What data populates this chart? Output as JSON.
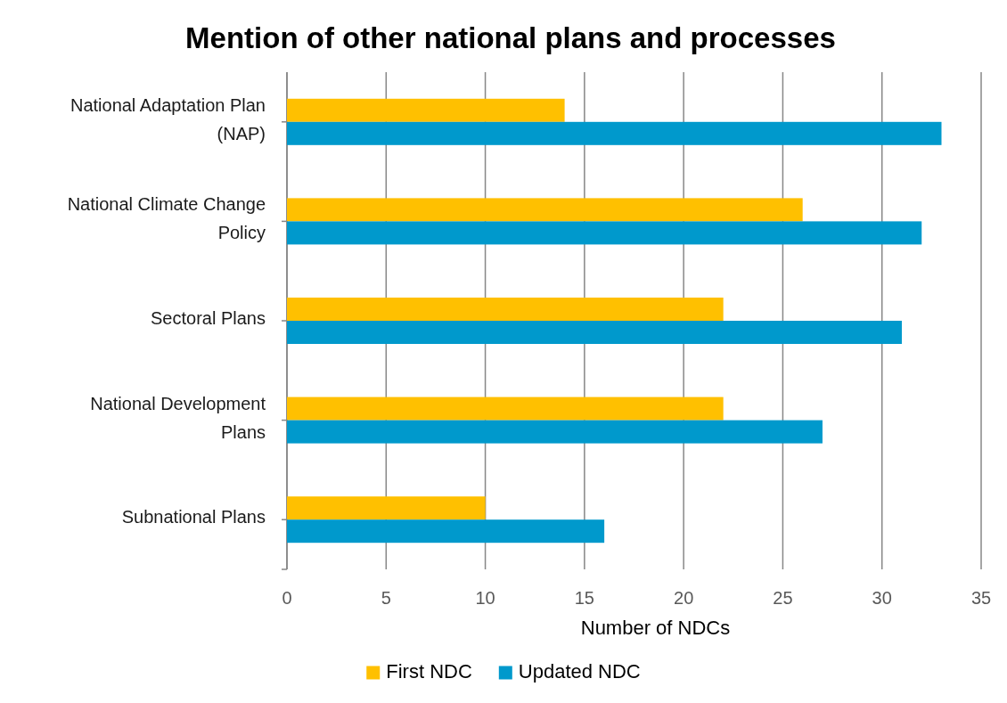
{
  "chart_data": {
    "type": "bar",
    "orientation": "horizontal",
    "title": "Mention of other national plans and processes",
    "xlabel": "Number of NDCs",
    "categories": [
      "National Adaptation Plan (NAP)",
      "National Climate Change Policy",
      "Sectoral Plans",
      "National Development Plans",
      "Subnational Plans"
    ],
    "series": [
      {
        "name": "First NDC",
        "color": "#ffc000",
        "values": [
          14,
          26,
          22,
          22,
          10
        ]
      },
      {
        "name": "Updated NDC",
        "color": "#0099cc",
        "values": [
          33,
          32,
          31,
          27,
          16
        ]
      }
    ],
    "xlim": [
      0,
      35
    ],
    "xticks": [
      0,
      5,
      10,
      15,
      20,
      25,
      30,
      35
    ],
    "grid": "x",
    "legend": "bottom"
  }
}
